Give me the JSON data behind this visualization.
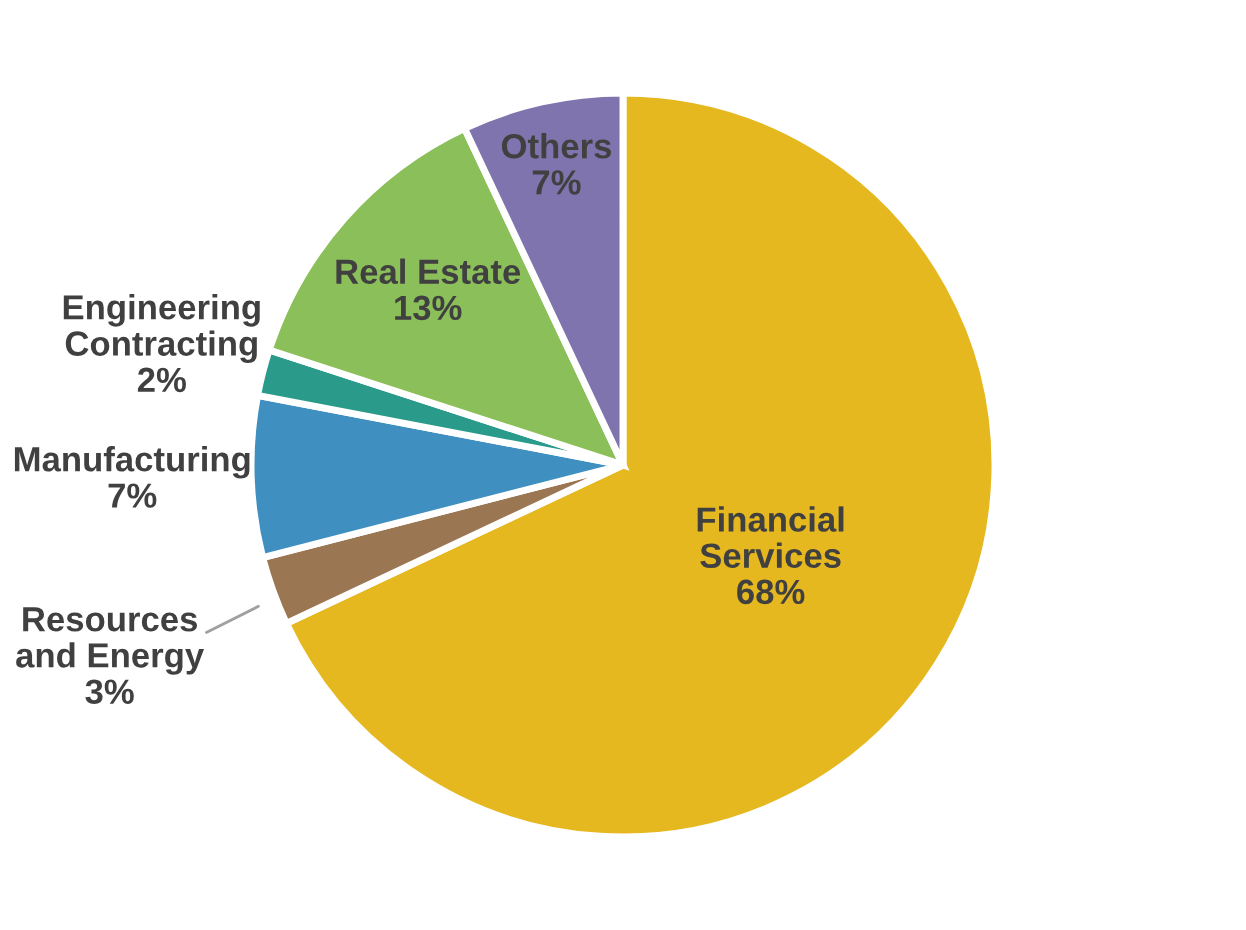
{
  "chart_data": {
    "type": "pie",
    "categories": [
      "Financial\nServices",
      "Resources\nand Energy",
      "Manufacturing",
      "Engineering\nContracting",
      "Real Estate",
      "Others"
    ],
    "values": [
      68,
      3,
      7,
      2,
      13,
      7
    ],
    "value_labels": [
      "68%",
      "3%",
      "7%",
      "2%",
      "13%",
      "7%"
    ],
    "colors": [
      "#e6b820",
      "#9b7653",
      "#3f8fc0",
      "#2a9a8a",
      "#8bbf5a",
      "#7f74ad"
    ]
  }
}
